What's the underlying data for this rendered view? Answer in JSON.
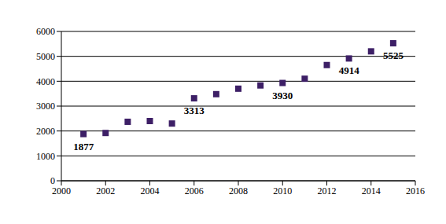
{
  "chart_data": {
    "type": "scatter",
    "x": [
      2001,
      2002,
      2003,
      2004,
      2005,
      2006,
      2007,
      2008,
      2009,
      2010,
      2011,
      2012,
      2013,
      2014,
      2015
    ],
    "values": [
      1877,
      1920,
      2370,
      2400,
      2300,
      3313,
      3480,
      3700,
      3830,
      3930,
      4100,
      4650,
      4914,
      5200,
      5525
    ],
    "value_labels": [
      "1877",
      null,
      null,
      null,
      null,
      "3313",
      null,
      null,
      null,
      "3930",
      null,
      null,
      "4914",
      null,
      "5525"
    ],
    "color": "#3d1f66",
    "marker": "square",
    "xlim": [
      2000,
      2016
    ],
    "xticks": [
      2000,
      2002,
      2004,
      2006,
      2008,
      2010,
      2012,
      2014,
      2016
    ],
    "ylim": [
      0,
      6000
    ],
    "yticks": [
      0,
      1000,
      2000,
      3000,
      4000,
      5000,
      6000
    ],
    "grid": true
  }
}
